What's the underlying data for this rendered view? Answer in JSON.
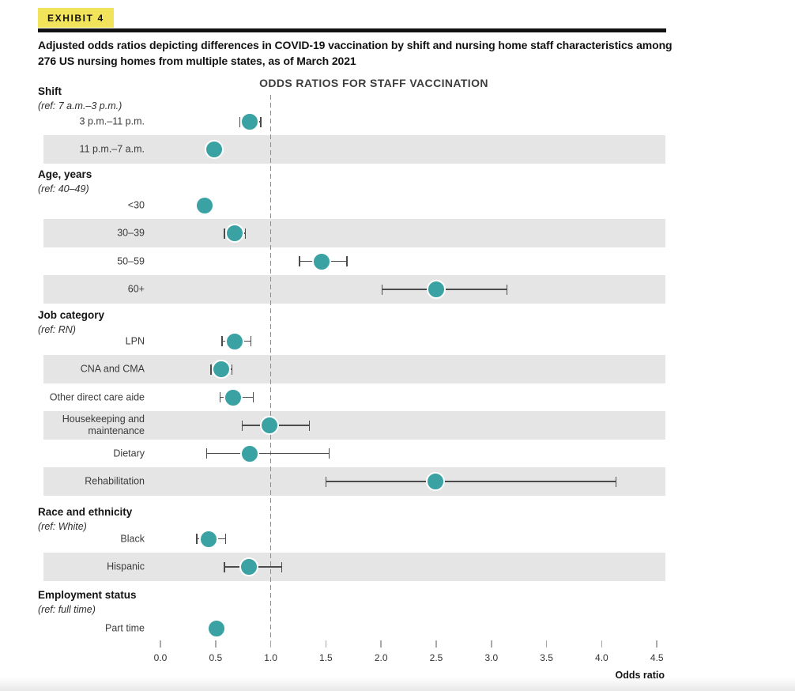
{
  "page": {
    "exhibit_tag": "EXHIBIT 4",
    "title": "Adjusted odds ratios depicting differences in COVID-19 vaccination by shift and nursing home staff characteristics among 276 US nursing homes from multiple states, as of March 2021"
  },
  "colors": {
    "accent_teal": "#3BA2A4",
    "band_gray": "#E5E5E5",
    "highlight_yellow": "#F2E45A",
    "rule_black": "#121212"
  },
  "chart_data": {
    "type": "scatter",
    "variant": "forest-plot-adjusted-odds-ratios-with-95ci",
    "title": "ODDS RATIOS FOR STAFF VACCINATION",
    "xlabel": "Odds ratio",
    "xlim": [
      0,
      4.5
    ],
    "xticks": [
      0,
      0.5,
      1.0,
      1.5,
      2.0,
      2.5,
      3.0,
      3.5,
      4.0,
      4.5
    ],
    "xtick_labels": [
      "0.0",
      "0.5",
      "1.0",
      "1.5",
      "2.0",
      "2.5",
      "3.0",
      "3.5",
      "4.0",
      "4.5"
    ],
    "reference_line_x": 1.0,
    "grid": false,
    "legend": null,
    "sections": [
      {
        "label": "Shift",
        "ref": "(ref: 7 a.m.–3 p.m.)",
        "rows": [
          {
            "label": "3 p.m.–11 p.m.",
            "odds_ratio": 0.81,
            "ci_low": 0.72,
            "ci_high": 0.91,
            "shaded": false
          },
          {
            "label": "11 p.m.–7 a.m.",
            "odds_ratio": 0.49,
            "ci_low": 0.44,
            "ci_high": 0.55,
            "shaded": true
          }
        ]
      },
      {
        "label": "Age, years",
        "ref": "(ref: 40–49)",
        "rows": [
          {
            "label": "<30",
            "odds_ratio": 0.4,
            "ci_low": 0.35,
            "ci_high": 0.46,
            "shaded": false
          },
          {
            "label": "30–39",
            "odds_ratio": 0.67,
            "ci_low": 0.58,
            "ci_high": 0.77,
            "shaded": true
          },
          {
            "label": "50–59",
            "odds_ratio": 1.46,
            "ci_low": 1.26,
            "ci_high": 1.69,
            "shaded": false
          },
          {
            "label": "60+",
            "odds_ratio": 2.5,
            "ci_low": 2.01,
            "ci_high": 3.14,
            "shaded": true
          }
        ]
      },
      {
        "label": "Job category",
        "ref": "(ref: RN)",
        "rows": [
          {
            "label": "LPN",
            "odds_ratio": 0.67,
            "ci_low": 0.56,
            "ci_high": 0.82,
            "shaded": false
          },
          {
            "label": "CNA and CMA",
            "odds_ratio": 0.55,
            "ci_low": 0.46,
            "ci_high": 0.65,
            "shaded": true
          },
          {
            "label": "Other direct care aide",
            "odds_ratio": 0.66,
            "ci_low": 0.54,
            "ci_high": 0.84,
            "shaded": false
          },
          {
            "label": "Housekeeping and maintenance",
            "odds_ratio": 0.99,
            "ci_low": 0.74,
            "ci_high": 1.35,
            "shaded": true
          },
          {
            "label": "Dietary",
            "odds_ratio": 0.81,
            "ci_low": 0.42,
            "ci_high": 1.53,
            "shaded": false
          },
          {
            "label": "Rehabilitation",
            "odds_ratio": 2.49,
            "ci_low": 1.5,
            "ci_high": 4.13,
            "shaded": true
          }
        ]
      },
      {
        "label": "Race and ethnicity",
        "ref": "(ref: White)",
        "rows": [
          {
            "label": "Black",
            "odds_ratio": 0.44,
            "ci_low": 0.33,
            "ci_high": 0.59,
            "shaded": false
          },
          {
            "label": "Hispanic",
            "odds_ratio": 0.8,
            "ci_low": 0.58,
            "ci_high": 1.1,
            "shaded": true
          }
        ]
      },
      {
        "label": "Employment status",
        "ref": "(ref: full time)",
        "rows": [
          {
            "label": "Part time",
            "odds_ratio": 0.51,
            "ci_low": 0.45,
            "ci_high": 0.57,
            "shaded": false
          }
        ]
      }
    ]
  }
}
